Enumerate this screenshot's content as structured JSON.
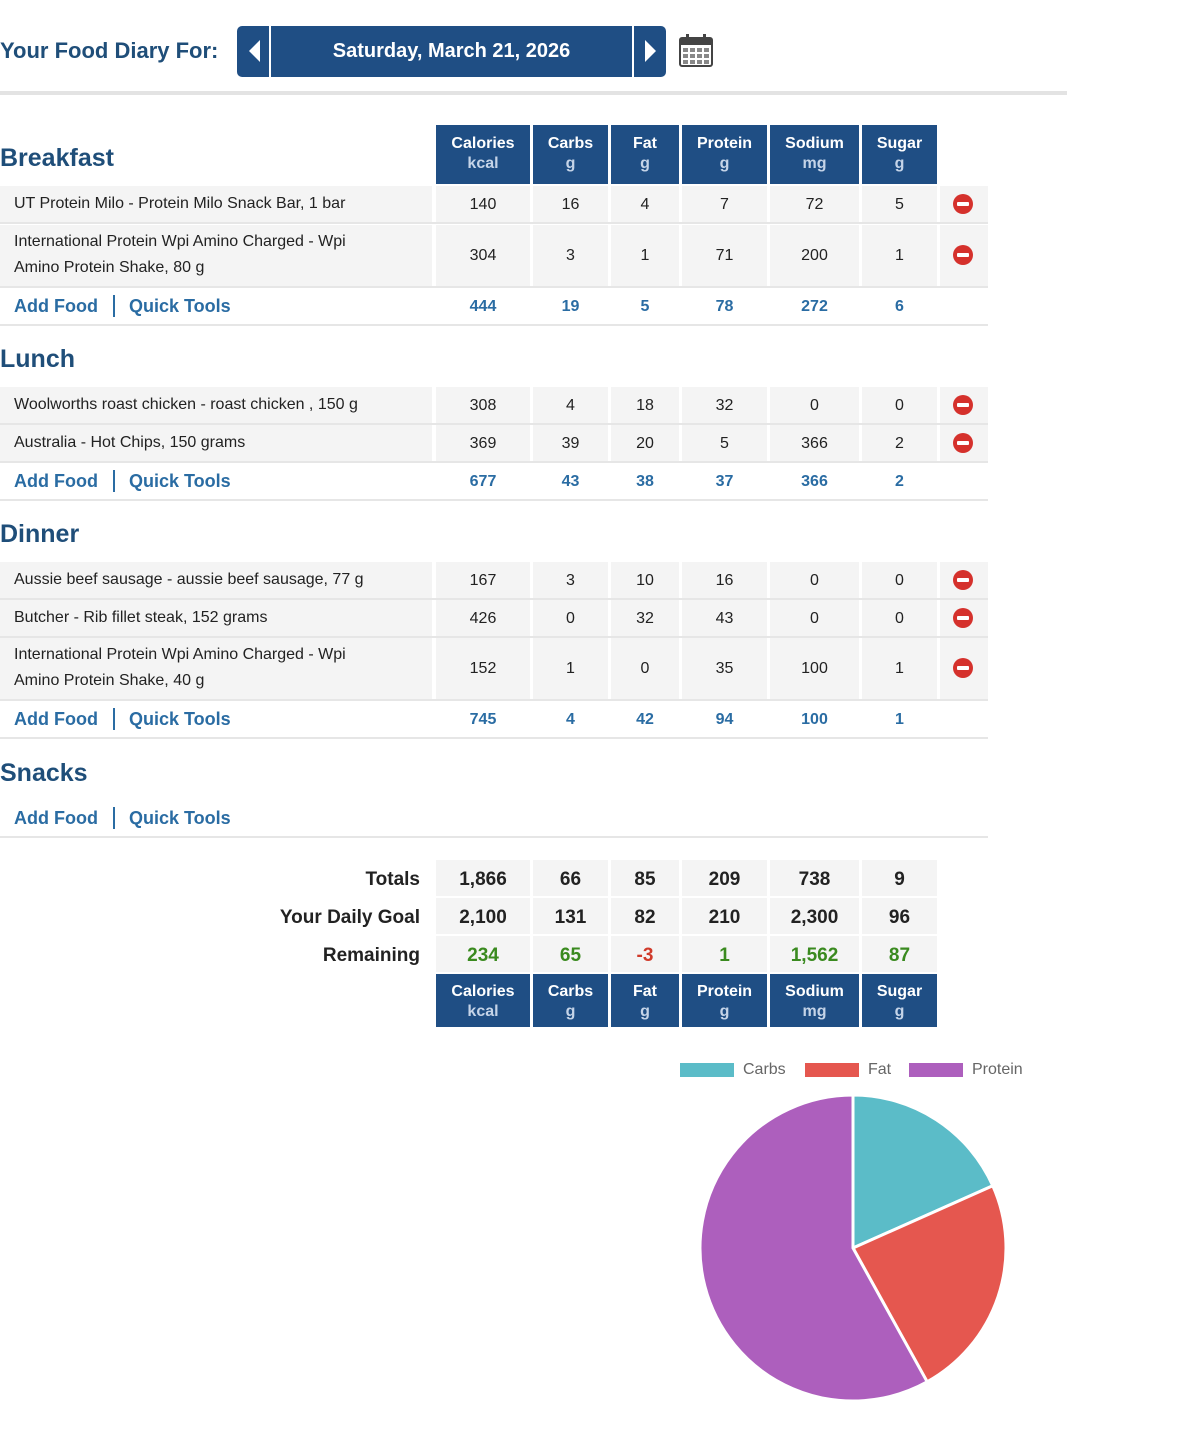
{
  "header": {
    "title": "Your Food Diary For:",
    "date": "Saturday, March 21, 2026"
  },
  "columns": [
    {
      "name": "Calories",
      "unit": "kcal"
    },
    {
      "name": "Carbs",
      "unit": "g"
    },
    {
      "name": "Fat",
      "unit": "g"
    },
    {
      "name": "Protein",
      "unit": "g"
    },
    {
      "name": "Sodium",
      "unit": "mg"
    },
    {
      "name": "Sugar",
      "unit": "g"
    }
  ],
  "actions": {
    "add_food": "Add Food",
    "quick_tools": "Quick Tools"
  },
  "meals": {
    "breakfast": {
      "title": "Breakfast",
      "items": [
        {
          "name": "UT Protein Milo - Protein Milo Snack Bar, 1 bar",
          "values": [
            "140",
            "16",
            "4",
            "7",
            "72",
            "5"
          ]
        },
        {
          "name": "International Protein Wpi Amino Charged - Wpi",
          "name2": "Amino Protein Shake, 80 g",
          "values": [
            "304",
            "3",
            "1",
            "71",
            "200",
            "1"
          ]
        }
      ],
      "totals": [
        "444",
        "19",
        "5",
        "78",
        "272",
        "6"
      ]
    },
    "lunch": {
      "title": "Lunch",
      "items": [
        {
          "name": "Woolworths roast chicken - roast chicken , 150 g",
          "values": [
            "308",
            "4",
            "18",
            "32",
            "0",
            "0"
          ]
        },
        {
          "name": "Australia - Hot Chips, 150 grams",
          "values": [
            "369",
            "39",
            "20",
            "5",
            "366",
            "2"
          ]
        }
      ],
      "totals": [
        "677",
        "43",
        "38",
        "37",
        "366",
        "2"
      ]
    },
    "dinner": {
      "title": "Dinner",
      "items": [
        {
          "name": "Aussie beef sausage - aussie beef sausage, 77 g",
          "values": [
            "167",
            "3",
            "10",
            "16",
            "0",
            "0"
          ]
        },
        {
          "name": "Butcher - Rib fillet steak, 152 grams",
          "values": [
            "426",
            "0",
            "32",
            "43",
            "0",
            "0"
          ]
        },
        {
          "name": "International Protein Wpi Amino Charged - Wpi",
          "name2": "Amino Protein Shake, 40 g",
          "values": [
            "152",
            "1",
            "0",
            "35",
            "100",
            "1"
          ]
        }
      ],
      "totals": [
        "745",
        "4",
        "42",
        "94",
        "100",
        "1"
      ]
    },
    "snacks": {
      "title": "Snacks"
    }
  },
  "summary": {
    "totals": {
      "label": "Totals",
      "values": [
        "1,866",
        "66",
        "85",
        "209",
        "738",
        "9"
      ]
    },
    "goal": {
      "label": "Your Daily Goal",
      "values": [
        "2,100",
        "131",
        "82",
        "210",
        "2,300",
        "96"
      ]
    },
    "remaining": {
      "label": "Remaining",
      "values": [
        "234",
        "65",
        "-3",
        "1",
        "1,562",
        "87"
      ]
    }
  },
  "chart_data": {
    "type": "pie",
    "labels": [
      "Carbs",
      "Fat",
      "Protein"
    ],
    "values": [
      66,
      85,
      209
    ],
    "colors": [
      "#5bbcc8",
      "#e5574f",
      "#ad5fbd"
    ],
    "legend": "top"
  },
  "colors": {
    "accent": "#1f4e84",
    "link": "#2a6ca3",
    "positive": "#3a8a1f",
    "negative": "#d03a2a",
    "delete": "#d5312c"
  }
}
